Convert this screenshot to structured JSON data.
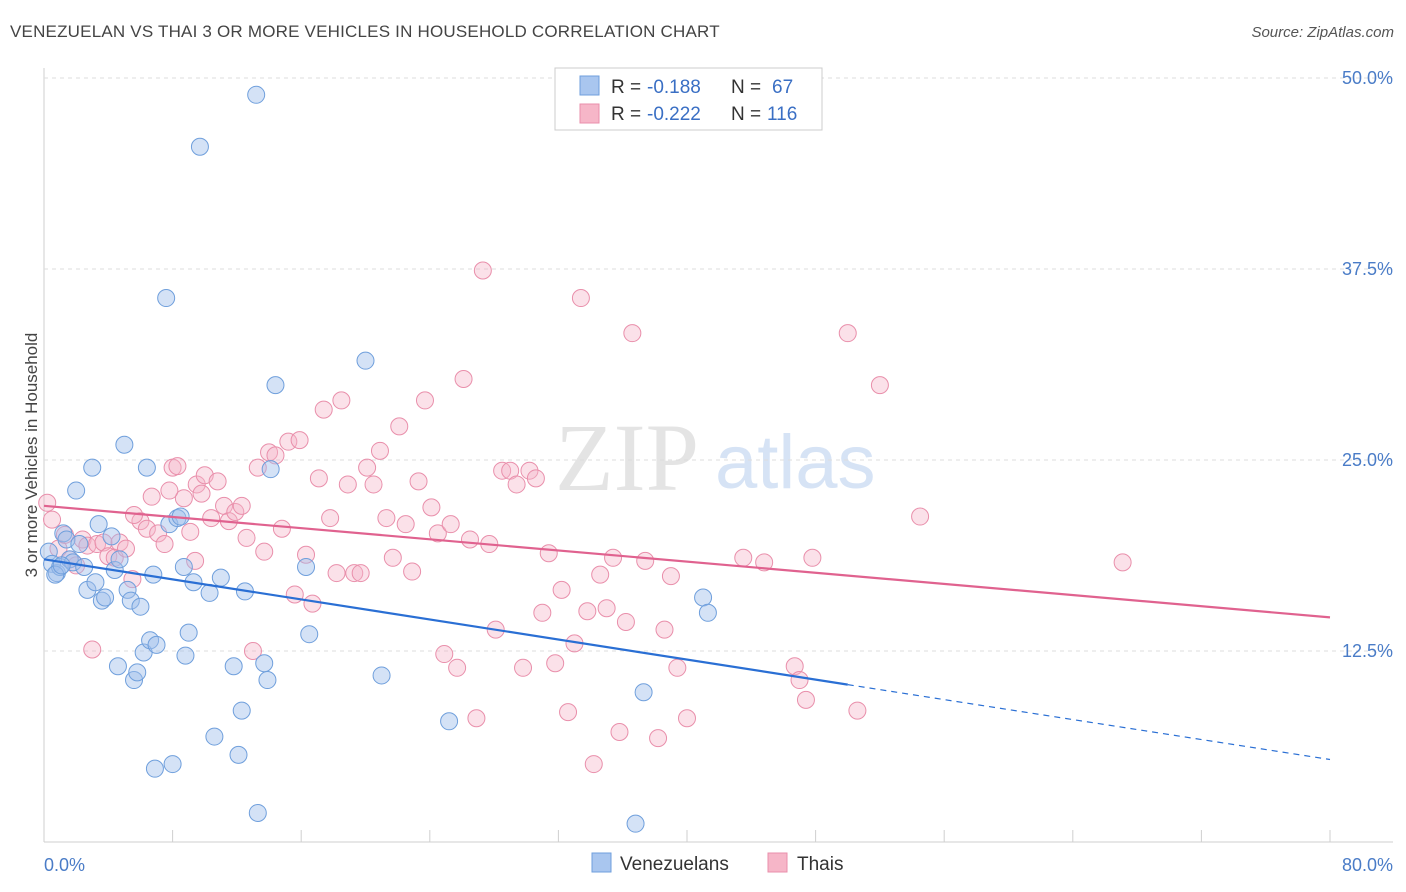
{
  "title": "VENEZUELAN VS THAI 3 OR MORE VEHICLES IN HOUSEHOLD CORRELATION CHART",
  "source": "Source: ZipAtlas.com",
  "watermark": {
    "zip": "ZIP",
    "atlas": "atlas"
  },
  "legend": {
    "r_label": "R =",
    "n_label": "N =",
    "rows": [
      {
        "r": "-0.188",
        "n": "67",
        "color": "#a9c6ef"
      },
      {
        "r": "-0.222",
        "n": "116",
        "color": "#f6b6c8"
      }
    ]
  },
  "colors": {
    "blue_fill": "rgba(160,190,235,0.45)",
    "blue_stroke": "#6f9fdc",
    "blue_line": "#2a6fd4",
    "pink_fill": "rgba(245,180,200,0.40)",
    "pink_stroke": "#e98fab",
    "pink_line": "#e0628f",
    "axis_text": "#4a7cc7"
  },
  "chart_data": {
    "type": "scatter",
    "ylabel": "3 or more Vehicles in Household",
    "xlim": [
      0,
      80
    ],
    "ylim": [
      0,
      50
    ],
    "x_tick_labels": [
      "0.0%",
      "80.0%"
    ],
    "y_ticks": [
      12.5,
      25.0,
      37.5,
      50.0
    ],
    "y_tick_labels": [
      "12.5%",
      "25.0%",
      "37.5%",
      "50.0%"
    ],
    "x_minor_ticks": [
      8,
      16,
      24,
      32,
      40,
      48,
      56,
      64,
      72,
      80
    ],
    "grid": true,
    "legend_position": "top-center",
    "series": [
      {
        "name": "Venezuelans",
        "trend": {
          "x0": 0,
          "y0": 18.5,
          "x1": 50,
          "y1": 10.3,
          "dash_to_x": 80,
          "dash_to_y": 5.4
        },
        "points": [
          [
            0.3,
            19.0
          ],
          [
            0.5,
            18.2
          ],
          [
            0.8,
            17.6
          ],
          [
            1.0,
            18.0
          ],
          [
            1.2,
            20.2
          ],
          [
            1.4,
            19.8
          ],
          [
            1.6,
            18.5
          ],
          [
            1.8,
            18.3
          ],
          [
            2.0,
            23.0
          ],
          [
            2.2,
            19.5
          ],
          [
            2.5,
            18.0
          ],
          [
            2.7,
            16.5
          ],
          [
            3.0,
            24.5
          ],
          [
            3.2,
            17.0
          ],
          [
            3.4,
            20.8
          ],
          [
            3.6,
            15.8
          ],
          [
            3.8,
            16.0
          ],
          [
            4.2,
            20.0
          ],
          [
            4.4,
            17.8
          ],
          [
            4.6,
            11.5
          ],
          [
            4.7,
            18.5
          ],
          [
            5.0,
            26.0
          ],
          [
            5.2,
            16.5
          ],
          [
            5.4,
            15.8
          ],
          [
            5.6,
            10.6
          ],
          [
            5.8,
            11.1
          ],
          [
            6.0,
            15.4
          ],
          [
            6.2,
            12.4
          ],
          [
            6.4,
            24.5
          ],
          [
            6.6,
            13.2
          ],
          [
            6.8,
            17.5
          ],
          [
            6.9,
            4.8
          ],
          [
            7.0,
            12.9
          ],
          [
            7.6,
            35.6
          ],
          [
            7.8,
            20.8
          ],
          [
            8.0,
            5.1
          ],
          [
            8.3,
            21.2
          ],
          [
            8.5,
            21.3
          ],
          [
            8.7,
            18.0
          ],
          [
            8.8,
            12.2
          ],
          [
            9.0,
            13.7
          ],
          [
            9.3,
            17.0
          ],
          [
            9.7,
            45.5
          ],
          [
            10.3,
            16.3
          ],
          [
            10.6,
            6.9
          ],
          [
            11.0,
            17.3
          ],
          [
            11.8,
            11.5
          ],
          [
            12.1,
            5.7
          ],
          [
            12.3,
            8.6
          ],
          [
            12.5,
            16.4
          ],
          [
            13.2,
            48.9
          ],
          [
            13.3,
            1.9
          ],
          [
            13.7,
            11.7
          ],
          [
            13.9,
            10.6
          ],
          [
            14.1,
            24.4
          ],
          [
            14.4,
            29.9
          ],
          [
            16.3,
            18.0
          ],
          [
            16.5,
            13.6
          ],
          [
            20.0,
            31.5
          ],
          [
            21.0,
            10.9
          ],
          [
            25.2,
            7.9
          ],
          [
            36.8,
            1.2
          ],
          [
            37.3,
            9.8
          ],
          [
            41.0,
            16.0
          ],
          [
            41.3,
            15.0
          ],
          [
            0.7,
            17.5
          ],
          [
            1.1,
            18.1
          ]
        ]
      },
      {
        "name": "Thais",
        "trend": {
          "x0": 0,
          "y0": 22.0,
          "x1": 80,
          "y1": 14.7
        },
        "points": [
          [
            0.2,
            22.2
          ],
          [
            0.5,
            21.1
          ],
          [
            0.9,
            19.2
          ],
          [
            1.3,
            20.1
          ],
          [
            1.6,
            18.5
          ],
          [
            2.0,
            18.1
          ],
          [
            2.4,
            19.8
          ],
          [
            2.7,
            19.4
          ],
          [
            3.0,
            12.6
          ],
          [
            3.3,
            19.5
          ],
          [
            3.7,
            19.6
          ],
          [
            4.0,
            18.7
          ],
          [
            4.4,
            18.6
          ],
          [
            4.7,
            19.6
          ],
          [
            5.1,
            19.2
          ],
          [
            5.5,
            17.2
          ],
          [
            6.0,
            21.0
          ],
          [
            6.4,
            20.5
          ],
          [
            6.7,
            22.6
          ],
          [
            7.1,
            20.2
          ],
          [
            7.5,
            19.5
          ],
          [
            8.0,
            24.5
          ],
          [
            8.3,
            24.6
          ],
          [
            8.7,
            22.5
          ],
          [
            9.1,
            20.3
          ],
          [
            9.5,
            23.4
          ],
          [
            9.8,
            22.8
          ],
          [
            10.0,
            24.0
          ],
          [
            10.4,
            21.2
          ],
          [
            10.8,
            23.6
          ],
          [
            11.2,
            22.0
          ],
          [
            11.5,
            21.0
          ],
          [
            11.9,
            21.6
          ],
          [
            12.3,
            22.0
          ],
          [
            12.6,
            19.9
          ],
          [
            13.0,
            12.5
          ],
          [
            13.3,
            24.5
          ],
          [
            13.7,
            19.0
          ],
          [
            14.0,
            25.5
          ],
          [
            14.4,
            25.3
          ],
          [
            14.8,
            20.5
          ],
          [
            15.2,
            26.2
          ],
          [
            15.6,
            16.2
          ],
          [
            15.9,
            26.3
          ],
          [
            16.3,
            18.8
          ],
          [
            16.7,
            15.6
          ],
          [
            17.1,
            23.8
          ],
          [
            17.4,
            28.3
          ],
          [
            17.8,
            21.2
          ],
          [
            18.2,
            17.6
          ],
          [
            18.5,
            28.9
          ],
          [
            18.9,
            23.4
          ],
          [
            19.3,
            17.6
          ],
          [
            19.7,
            17.6
          ],
          [
            20.1,
            24.5
          ],
          [
            20.5,
            23.4
          ],
          [
            20.9,
            25.6
          ],
          [
            21.3,
            21.2
          ],
          [
            21.7,
            18.6
          ],
          [
            22.1,
            27.2
          ],
          [
            22.5,
            20.8
          ],
          [
            22.9,
            17.7
          ],
          [
            23.3,
            23.6
          ],
          [
            23.7,
            28.9
          ],
          [
            24.1,
            21.9
          ],
          [
            24.5,
            20.2
          ],
          [
            24.9,
            12.3
          ],
          [
            25.3,
            20.8
          ],
          [
            25.7,
            11.4
          ],
          [
            26.1,
            30.3
          ],
          [
            26.5,
            19.8
          ],
          [
            26.9,
            8.1
          ],
          [
            27.3,
            37.4
          ],
          [
            27.7,
            19.5
          ],
          [
            28.1,
            13.9
          ],
          [
            28.5,
            24.3
          ],
          [
            29.0,
            24.3
          ],
          [
            29.4,
            23.4
          ],
          [
            29.8,
            11.4
          ],
          [
            30.2,
            24.3
          ],
          [
            30.6,
            23.8
          ],
          [
            31.0,
            15.0
          ],
          [
            31.4,
            18.9
          ],
          [
            31.8,
            11.7
          ],
          [
            32.2,
            16.5
          ],
          [
            32.6,
            8.5
          ],
          [
            33.0,
            13.0
          ],
          [
            33.4,
            35.6
          ],
          [
            33.8,
            15.1
          ],
          [
            34.2,
            5.1
          ],
          [
            34.6,
            17.5
          ],
          [
            35.0,
            15.3
          ],
          [
            35.4,
            18.6
          ],
          [
            35.8,
            7.2
          ],
          [
            36.2,
            14.4
          ],
          [
            36.6,
            33.3
          ],
          [
            37.4,
            18.4
          ],
          [
            38.2,
            6.8
          ],
          [
            38.6,
            13.9
          ],
          [
            39.0,
            17.4
          ],
          [
            39.4,
            11.4
          ],
          [
            40.0,
            8.1
          ],
          [
            43.5,
            18.6
          ],
          [
            44.8,
            18.3
          ],
          [
            46.7,
            11.5
          ],
          [
            47.0,
            10.6
          ],
          [
            47.4,
            9.3
          ],
          [
            47.8,
            18.6
          ],
          [
            50.0,
            33.3
          ],
          [
            50.6,
            8.6
          ],
          [
            52.0,
            29.9
          ],
          [
            54.5,
            21.3
          ],
          [
            67.1,
            18.3
          ],
          [
            5.6,
            21.4
          ],
          [
            7.8,
            23.0
          ],
          [
            9.4,
            18.4
          ]
        ]
      }
    ]
  },
  "bottom_legend": [
    {
      "label": "Venezuelans",
      "color": "#a9c6ef"
    },
    {
      "label": "Thais",
      "color": "#f6b6c8"
    }
  ]
}
